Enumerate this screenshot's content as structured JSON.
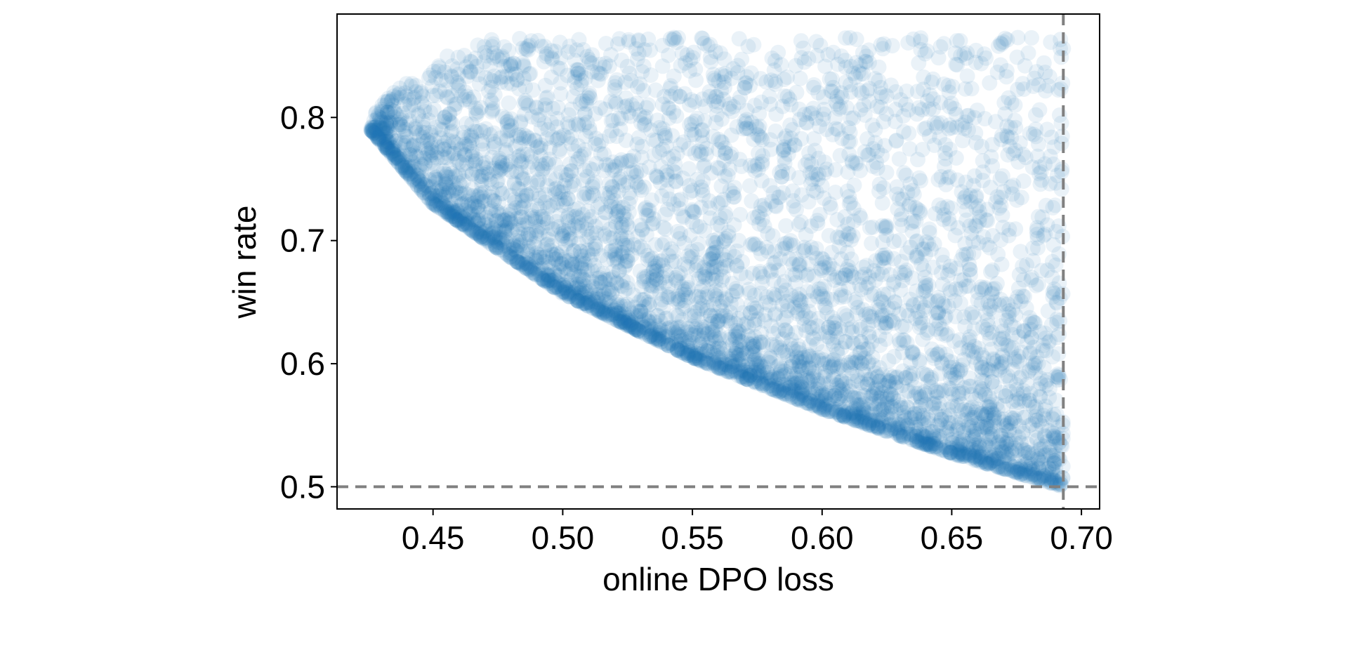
{
  "chart_data": {
    "type": "scatter",
    "title": "",
    "xlabel": "online DPO loss",
    "ylabel": "win rate",
    "xlim": [
      0.413,
      0.707
    ],
    "ylim": [
      0.482,
      0.884
    ],
    "xticks": [
      0.45,
      0.5,
      0.55,
      0.6,
      0.65,
      0.7
    ],
    "xtick_labels": [
      "0.45",
      "0.50",
      "0.55",
      "0.60",
      "0.65",
      "0.70"
    ],
    "yticks": [
      0.5,
      0.6,
      0.7,
      0.8
    ],
    "ytick_labels": [
      "0.5",
      "0.6",
      "0.7",
      "0.8"
    ],
    "grid": false,
    "legend": "none",
    "point_color": "#1f77b4",
    "reference_color": "#808080",
    "reference_lines": [
      {
        "orientation": "vertical",
        "x": 0.693
      },
      {
        "orientation": "horizontal",
        "y": 0.5
      }
    ],
    "series": [
      {
        "point_count": 5000,
        "envelope_points": [
          {
            "x": 0.426,
            "y": 0.79
          },
          {
            "x": 0.45,
            "y": 0.73
          },
          {
            "x": 0.5,
            "y": 0.657
          },
          {
            "x": 0.55,
            "y": 0.605
          },
          {
            "x": 0.6,
            "y": 0.563
          },
          {
            "x": 0.65,
            "y": 0.527
          },
          {
            "x": 0.693,
            "y": 0.5
          }
        ],
        "upper_win_rate": 0.865
      }
    ]
  }
}
